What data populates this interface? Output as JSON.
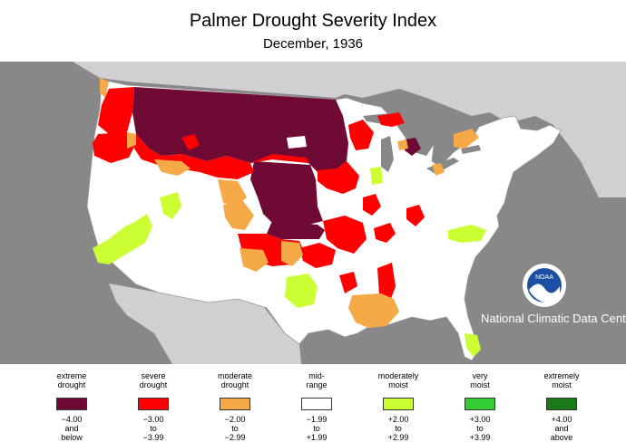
{
  "title": "Palmer Drought Severity Index",
  "subtitle": "December, 1936",
  "credit": "National Climatic Data Center",
  "logo_text": "NOAA",
  "colors": {
    "water": "#888888",
    "land_outside": "#d0d0d0",
    "us_land": "#ffffff",
    "extreme_drought": "#6e0a33",
    "severe_drought": "#ff0000",
    "moderate_drought": "#f5a947",
    "mid_range": "#ffffff",
    "moderately_moist": "#ccff33",
    "very_moist": "#33cc33",
    "extremely_moist": "#1a7a1a"
  },
  "legend": [
    {
      "label1": "extreme",
      "label2": "drought",
      "color": "#6e0a33",
      "r1": "−4.00",
      "r2": "and",
      "r3": "below"
    },
    {
      "label1": "severe",
      "label2": "drought",
      "color": "#ff0000",
      "r1": "−3.00",
      "r2": "to",
      "r3": "−3.99"
    },
    {
      "label1": "moderate",
      "label2": "drought",
      "color": "#f5a947",
      "r1": "−2.00",
      "r2": "to",
      "r3": "−2.99"
    },
    {
      "label1": "mid-",
      "label2": "range",
      "color": "#ffffff",
      "r1": "−1.99",
      "r2": "to",
      "r3": "+1.99"
    },
    {
      "label1": "moderately",
      "label2": "moist",
      "color": "#ccff33",
      "r1": "+2.00",
      "r2": "to",
      "r3": "+2.99"
    },
    {
      "label1": "very",
      "label2": "moist",
      "color": "#33cc33",
      "r1": "+3.00",
      "r2": "to",
      "r3": "+3.99"
    },
    {
      "label1": "extremely",
      "label2": "moist",
      "color": "#1a7a1a",
      "r1": "+4.00",
      "r2": "and",
      "r3": "above"
    }
  ]
}
